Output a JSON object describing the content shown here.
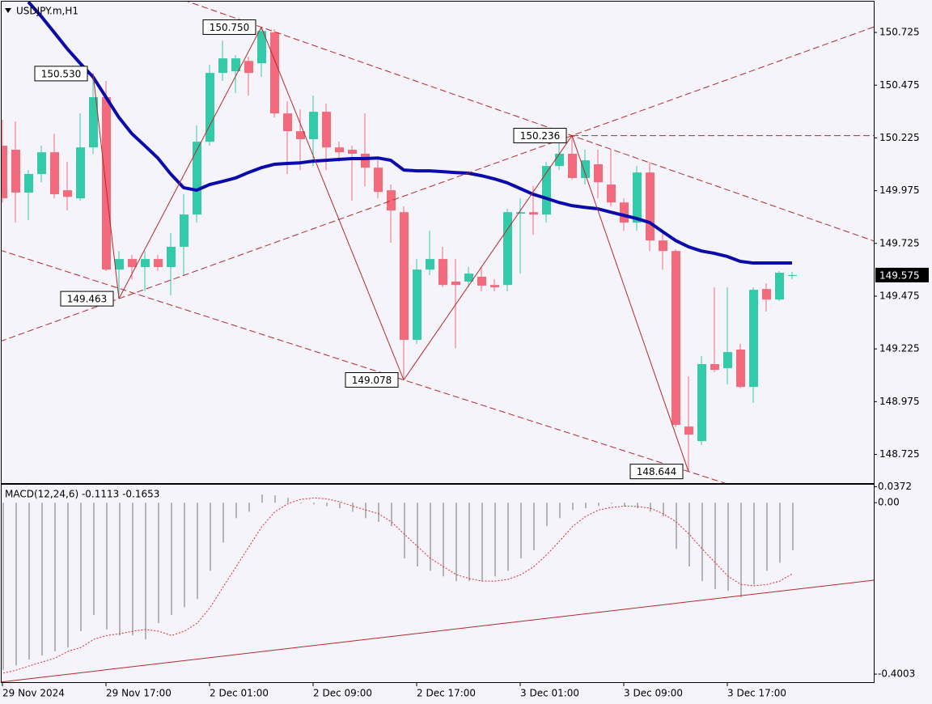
{
  "chart_data": [
    {
      "type": "candlestick",
      "title": "USDJPY.m,H1",
      "categories": [
        "29 Nov 2024",
        null,
        null,
        null,
        null,
        null,
        null,
        null,
        "29 Nov 17:00",
        null,
        null,
        null,
        null,
        null,
        null,
        null,
        "2 Dec 01:00",
        null,
        null,
        null,
        null,
        null,
        null,
        null,
        "2 Dec 09:00",
        null,
        null,
        null,
        null,
        null,
        null,
        null,
        "2 Dec 17:00",
        null,
        null,
        null,
        null,
        null,
        null,
        null,
        "3 Dec 01:00",
        null,
        null,
        null,
        null,
        null,
        null,
        null,
        "3 Dec 09:00",
        null,
        null,
        null,
        null,
        null,
        null,
        null,
        "3 Dec 17:00",
        null,
        null,
        null,
        null,
        null
      ],
      "open": [
        150.188,
        150.169,
        149.966,
        150.054,
        150.157,
        149.977,
        149.939,
        150.18,
        150.418,
        149.601,
        149.651,
        149.613,
        149.651,
        149.613,
        149.709,
        149.862,
        150.207,
        150.533,
        150.541,
        150.59,
        150.579,
        150.725,
        150.341,
        150.257,
        150.219,
        150.349,
        150.18,
        150.169,
        150.15,
        150.084,
        149.977,
        149.873,
        149.268,
        149.601,
        149.651,
        149.544,
        149.544,
        149.567,
        149.528,
        149.528,
        149.866,
        149.873,
        149.862,
        150.092,
        150.15,
        150.035,
        150.1,
        150.004,
        149.919,
        149.824,
        150.061,
        149.739,
        149.689,
        148.857,
        148.788,
        149.153,
        149.134,
        149.222,
        149.045,
        149.509,
        149.459,
        149.574
      ],
      "high": [
        150.311,
        150.303,
        150.073,
        150.188,
        150.245,
        150.111,
        150.341,
        150.53,
        150.495,
        149.689,
        149.67,
        149.689,
        149.67,
        149.774,
        149.958,
        150.284,
        150.571,
        150.686,
        150.617,
        150.61,
        150.75,
        150.74,
        150.399,
        150.36,
        150.426,
        150.387,
        150.207,
        150.188,
        150.341,
        150.13,
        150.004,
        149.9,
        149.651,
        149.785,
        149.709,
        149.651,
        149.613,
        149.613,
        149.555,
        149.889,
        149.939,
        149.996,
        150.111,
        150.207,
        150.236,
        150.169,
        150.169,
        150.169,
        149.939,
        150.092,
        150.111,
        149.785,
        149.697,
        149.095,
        149.191,
        149.517,
        149.517,
        149.249,
        149.517,
        149.536,
        149.594,
        149.59
      ],
      "low": [
        149.919,
        149.824,
        149.835,
        150.015,
        149.939,
        149.881,
        149.927,
        150.15,
        149.594,
        149.463,
        149.555,
        149.498,
        149.594,
        149.479,
        149.574,
        149.824,
        150.188,
        150.495,
        150.437,
        150.426,
        150.514,
        150.322,
        150.054,
        150.073,
        150.092,
        150.073,
        150.111,
        149.927,
        149.996,
        149.939,
        149.728,
        149.078,
        149.249,
        149.574,
        149.517,
        149.229,
        149.517,
        149.498,
        149.498,
        149.498,
        149.582,
        149.766,
        149.824,
        150.073,
        150.027,
        150.004,
        149.939,
        149.9,
        149.785,
        149.785,
        149.689,
        149.601,
        148.854,
        148.644,
        148.769,
        149.114,
        149.057,
        149.038,
        148.969,
        149.402,
        149.452,
        149.555
      ],
      "close": [
        149.939,
        149.966,
        150.054,
        150.157,
        149.958,
        149.946,
        150.18,
        150.418,
        149.601,
        149.651,
        149.613,
        149.651,
        149.613,
        149.709,
        149.862,
        150.207,
        150.533,
        150.602,
        150.602,
        150.533,
        150.732,
        150.341,
        150.257,
        150.219,
        150.349,
        150.18,
        150.157,
        150.15,
        150.084,
        149.969,
        149.881,
        149.268,
        149.601,
        149.651,
        149.528,
        149.528,
        149.582,
        149.525,
        149.517,
        149.873,
        149.873,
        149.862,
        150.092,
        150.15,
        150.035,
        150.119,
        150.015,
        149.919,
        149.824,
        150.061,
        149.739,
        149.689,
        148.865,
        148.819,
        149.153,
        149.126,
        149.21,
        149.045,
        149.505,
        149.459,
        149.586,
        149.575
      ],
      "up_color": "#33c9a9",
      "down_color": "#f26b7c",
      "ma": {
        "color": "#0b0bab",
        "values": [
          null,
          null,
          150.87,
          150.801,
          150.725,
          150.648,
          150.579,
          150.514,
          150.418,
          150.322,
          150.245,
          150.188,
          150.13,
          150.054,
          149.989,
          149.977,
          150.004,
          150.019,
          150.035,
          150.061,
          150.084,
          150.1,
          150.104,
          150.107,
          150.115,
          150.119,
          150.123,
          150.127,
          150.127,
          150.13,
          150.119,
          150.073,
          150.069,
          150.069,
          150.065,
          150.061,
          150.058,
          150.046,
          150.031,
          150.012,
          149.985,
          149.958,
          149.939,
          149.919,
          149.904,
          149.896,
          149.889,
          149.873,
          149.858,
          149.843,
          149.824,
          149.781,
          149.739,
          149.709,
          149.689,
          149.678,
          149.663,
          149.64,
          149.632,
          149.632,
          149.632,
          149.632
        ]
      },
      "annotations": [
        {
          "value": 150.53,
          "label": "150.530"
        },
        {
          "value": 149.463,
          "label": "149.463"
        },
        {
          "value": 150.75,
          "label": "150.750"
        },
        {
          "value": 149.078,
          "label": "149.078"
        },
        {
          "value": 150.236,
          "label": "150.236"
        },
        {
          "value": 148.644,
          "label": "148.644"
        }
      ],
      "ylim": [
        148.589,
        150.871
      ],
      "yticks": [
        150.725,
        150.475,
        150.225,
        149.975,
        149.725,
        149.475,
        149.225,
        148.975,
        148.725
      ]
    },
    {
      "type": "macd",
      "title": "MACD(12,24,6) -0.1113 -0.1653",
      "histogram": {
        "color": "#b4b4b4",
        "values": [
          -0.391,
          -0.38,
          -0.366,
          -0.357,
          -0.347,
          -0.338,
          -0.3,
          -0.262,
          -0.296,
          -0.31,
          -0.31,
          -0.319,
          -0.281,
          -0.262,
          -0.244,
          -0.225,
          -0.159,
          -0.093,
          -0.036,
          -0.021,
          0.019,
          0.017,
          0.011,
          -0.002,
          -0.004,
          -0.008,
          -0.013,
          -0.021,
          -0.036,
          -0.045,
          -0.055,
          -0.13,
          -0.149,
          -0.159,
          -0.172,
          -0.183,
          -0.183,
          -0.183,
          -0.172,
          -0.159,
          -0.13,
          -0.111,
          -0.055,
          -0.036,
          -0.017,
          -0.013,
          -0.008,
          -0.002,
          -0.009,
          -0.013,
          -0.021,
          -0.032,
          -0.108,
          -0.149,
          -0.183,
          -0.202,
          -0.206,
          -0.221,
          -0.191,
          -0.159,
          -0.14,
          -0.111
        ]
      },
      "signal": {
        "color": "#e02828",
        "values": [
          -0.398,
          -0.391,
          -0.381,
          -0.372,
          -0.363,
          -0.347,
          -0.338,
          -0.319,
          -0.31,
          -0.306,
          -0.3,
          -0.296,
          -0.3,
          -0.31,
          -0.3,
          -0.281,
          -0.244,
          -0.196,
          -0.149,
          -0.102,
          -0.055,
          -0.021,
          -0.002,
          0.008,
          0.011,
          0.009,
          0.002,
          -0.008,
          -0.017,
          -0.026,
          -0.045,
          -0.074,
          -0.102,
          -0.13,
          -0.149,
          -0.168,
          -0.177,
          -0.183,
          -0.183,
          -0.179,
          -0.168,
          -0.149,
          -0.121,
          -0.089,
          -0.055,
          -0.032,
          -0.017,
          -0.011,
          -0.008,
          -0.009,
          -0.013,
          -0.026,
          -0.045,
          -0.074,
          -0.108,
          -0.14,
          -0.172,
          -0.191,
          -0.194,
          -0.191,
          -0.183,
          -0.1653
        ]
      },
      "ylim": [
        -0.419,
        0.042
      ],
      "yticks": [
        0.0372,
        {
          "value": 0,
          "label": "0.00"
        },
        -0.4003
      ]
    }
  ]
}
